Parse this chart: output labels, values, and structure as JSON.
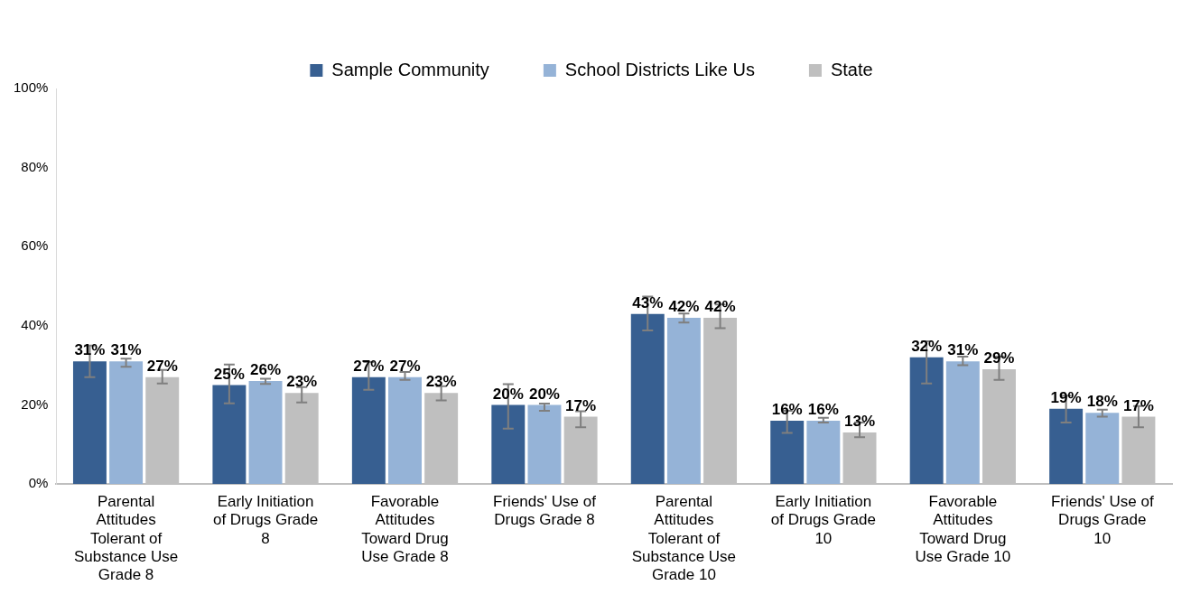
{
  "chart_data": {
    "type": "bar",
    "categories": [
      "Parental Attitudes Tolerant of Substance Use Grade 8",
      "Early Initiation of Drugs Grade 8",
      "Favorable Attitudes Toward Drug Use Grade 8",
      "Friends' Use of Drugs Grade 8",
      "Parental Attitudes Tolerant of Substance Use Grade 10",
      "Early Initiation of Drugs Grade 10",
      "Favorable Attitudes Toward Drug Use Grade 10",
      "Friends' Use of Drugs Grade 10"
    ],
    "series": [
      {
        "name": "Sample Community",
        "color": "#375f91",
        "values": [
          31,
          25,
          27,
          20,
          43,
          16,
          32,
          19
        ],
        "value_labels": [
          "31%",
          "25%",
          "27%",
          "20%",
          "43%",
          "16%",
          "32%",
          "19%"
        ],
        "errors": [
          [
            27,
            35
          ],
          [
            20.4,
            30.2
          ],
          [
            23.8,
            30.8
          ],
          [
            14,
            25.2
          ],
          [
            38.8,
            47.4
          ],
          [
            12.9,
            18.5
          ],
          [
            25.4,
            36.1
          ],
          [
            15.5,
            22.3
          ]
        ]
      },
      {
        "name": "School Districts Like Us",
        "color": "#95b3d7",
        "values": [
          31,
          26,
          27,
          20,
          42,
          16,
          31,
          18
        ],
        "value_labels": [
          "31%",
          "26%",
          "27%",
          "20%",
          "42%",
          "16%",
          "31%",
          "18%"
        ],
        "errors": [
          [
            29.6,
            31.7
          ],
          [
            25.3,
            26.6
          ],
          [
            26.3,
            28.3
          ],
          [
            18.5,
            20.3
          ],
          [
            40.8,
            43.1
          ],
          [
            15.5,
            16.7
          ],
          [
            30,
            32.2
          ],
          [
            17,
            18.8
          ]
        ]
      },
      {
        "name": "State",
        "color": "#bfbfbf",
        "values": [
          27,
          23,
          23,
          17,
          42,
          13,
          29,
          17
        ],
        "value_labels": [
          "27%",
          "23%",
          "23%",
          "17%",
          "42%",
          "13%",
          "29%",
          "17%"
        ],
        "errors": [
          [
            25.4,
            28.8
          ],
          [
            20.6,
            24.5
          ],
          [
            21.1,
            24.7
          ],
          [
            14.3,
            18.4
          ],
          [
            39.4,
            45.4
          ],
          [
            11.8,
            15.5
          ],
          [
            26.3,
            32.2
          ],
          [
            14.3,
            19.7
          ]
        ]
      }
    ],
    "ylim": [
      0,
      100
    ],
    "yticks": [
      {
        "value": 0,
        "label": "0%"
      },
      {
        "value": 20,
        "label": "20%"
      },
      {
        "value": 40,
        "label": "40%"
      },
      {
        "value": 60,
        "label": "60%"
      },
      {
        "value": 80,
        "label": "80%"
      },
      {
        "value": 100,
        "label": "100%"
      }
    ],
    "grid": false,
    "legend": "top"
  }
}
